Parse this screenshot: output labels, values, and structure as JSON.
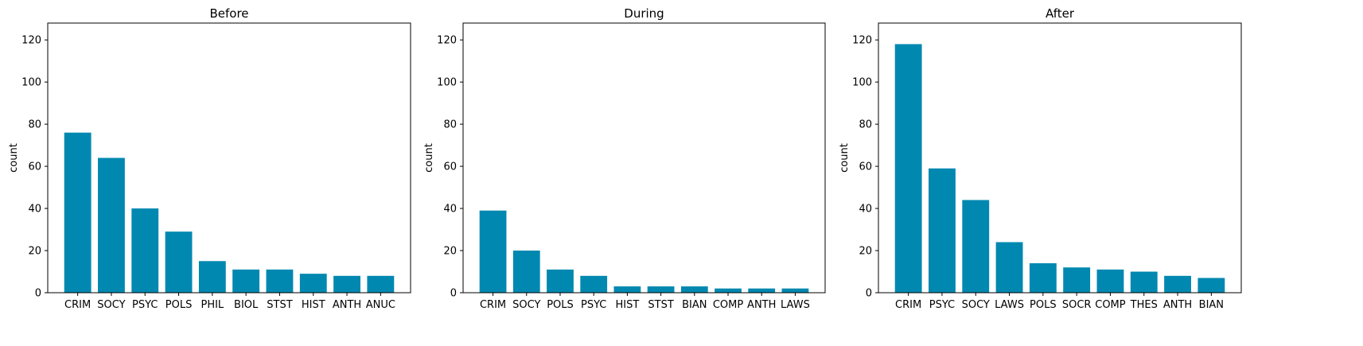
{
  "figure": {
    "bar_color": "#0088b0",
    "axis_color": "#000000",
    "background": "#ffffff"
  },
  "chart_data": [
    {
      "type": "bar",
      "title": "Before",
      "xlabel": "",
      "ylabel": "count",
      "ylim": [
        0,
        128
      ],
      "yticks": [
        0,
        20,
        40,
        60,
        80,
        100,
        120
      ],
      "grid": false,
      "categories": [
        "CRIM",
        "SOCY",
        "PSYC",
        "POLS",
        "PHIL",
        "BIOL",
        "STST",
        "HIST",
        "ANTH",
        "ANUC"
      ],
      "values": [
        76,
        64,
        40,
        29,
        15,
        11,
        11,
        9,
        8,
        8
      ]
    },
    {
      "type": "bar",
      "title": "During",
      "xlabel": "",
      "ylabel": "count",
      "ylim": [
        0,
        128
      ],
      "yticks": [
        0,
        20,
        40,
        60,
        80,
        100,
        120
      ],
      "grid": false,
      "categories": [
        "CRIM",
        "SOCY",
        "POLS",
        "PSYC",
        "HIST",
        "STST",
        "BIAN",
        "COMP",
        "ANTH",
        "LAWS"
      ],
      "values": [
        39,
        20,
        11,
        8,
        3,
        3,
        3,
        2,
        2,
        2
      ]
    },
    {
      "type": "bar",
      "title": "After",
      "xlabel": "",
      "ylabel": "count",
      "ylim": [
        0,
        128
      ],
      "yticks": [
        0,
        20,
        40,
        60,
        80,
        100,
        120
      ],
      "grid": false,
      "categories": [
        "CRIM",
        "PSYC",
        "SOCY",
        "LAWS",
        "POLS",
        "SOCR",
        "COMP",
        "THES",
        "ANTH",
        "BIAN"
      ],
      "values": [
        118,
        59,
        44,
        24,
        14,
        12,
        11,
        10,
        8,
        7
      ]
    }
  ]
}
